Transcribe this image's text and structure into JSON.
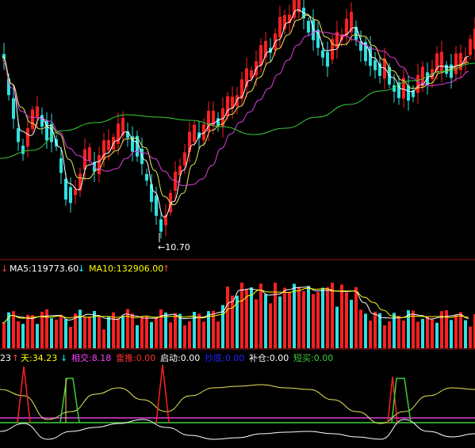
{
  "chart_data": [
    {
      "type": "candlestick",
      "annotation": "←10.70",
      "moving_averages": [
        {
          "color": "#ffffff"
        },
        {
          "color": "#e8e85a"
        },
        {
          "color": "#e040e0"
        },
        {
          "color": "#3ad03a"
        }
      ]
    },
    {
      "type": "bar",
      "ma_labels": [
        {
          "text": "MA5:119773.60",
          "color": "#ffffff",
          "arrow": "↓",
          "arrow_color": "#00ffff"
        },
        {
          "text": "MA10:132906.00",
          "color": "#ffff00",
          "arrow": "↑",
          "arrow_color": "#ff4040"
        }
      ]
    },
    {
      "type": "line",
      "indicator_labels": [
        {
          "text": "23",
          "color": "#ffffff",
          "arrow": "↑",
          "arrow_color": "#ff4040"
        },
        {
          "text": "天:34.23",
          "color": "#ffff00",
          "arrow": "↓",
          "arrow_color": "#00ffff"
        },
        {
          "text": "相交:8.18",
          "color": "#ff40ff"
        },
        {
          "text": "雷推:0.00",
          "color": "#ff3030"
        },
        {
          "text": "启动:0.00",
          "color": "#ffffff"
        },
        {
          "text": "抄底:0.00",
          "color": "#2020ff"
        },
        {
          "text": "补仓:0.00",
          "color": "#ffffff"
        },
        {
          "text": "短买:0.00",
          "color": "#3ad03a"
        }
      ]
    }
  ],
  "colors": {
    "up": "#ff2020",
    "down": "#30e0e0",
    "separator": "#a01818"
  }
}
